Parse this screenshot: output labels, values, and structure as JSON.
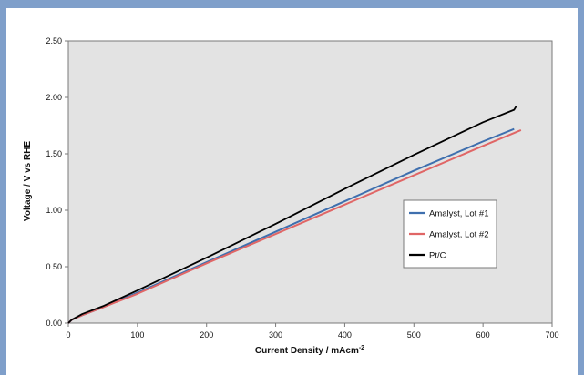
{
  "chart_data": {
    "type": "line",
    "title": "",
    "xlabel": "Current Density / mAcm",
    "xlabel_superscript": "-2",
    "ylabel": "Voltage / V vs RHE",
    "xlim": [
      0,
      700
    ],
    "ylim": [
      0,
      2.5
    ],
    "x_ticks": [
      "0",
      "100",
      "200",
      "300",
      "400",
      "500",
      "600",
      "700"
    ],
    "y_ticks": [
      "0.00",
      "0.50",
      "1.00",
      "1.50",
      "2.00",
      "2.50"
    ],
    "grid": false,
    "plot_background": "#e3e3e3",
    "legend_position": "right",
    "series": [
      {
        "name": "Amalyst, Lot #1",
        "color": "#3f6fae",
        "x": [
          0,
          5,
          20,
          50,
          100,
          200,
          300,
          400,
          500,
          600,
          645
        ],
        "y": [
          0,
          0.03,
          0.07,
          0.14,
          0.27,
          0.54,
          0.81,
          1.08,
          1.35,
          1.61,
          1.72
        ]
      },
      {
        "name": "Amalyst, Lot #2",
        "color": "#e06666",
        "x": [
          0,
          5,
          20,
          50,
          100,
          200,
          300,
          400,
          500,
          600,
          655
        ],
        "y": [
          0,
          0.03,
          0.07,
          0.14,
          0.26,
          0.53,
          0.79,
          1.05,
          1.31,
          1.57,
          1.71
        ]
      },
      {
        "name": "Pt/C",
        "color": "#000000",
        "x": [
          0,
          5,
          20,
          50,
          100,
          200,
          300,
          400,
          500,
          600,
          645,
          648
        ],
        "y": [
          0,
          0.03,
          0.08,
          0.15,
          0.29,
          0.58,
          0.88,
          1.19,
          1.49,
          1.78,
          1.89,
          1.92
        ]
      }
    ]
  }
}
